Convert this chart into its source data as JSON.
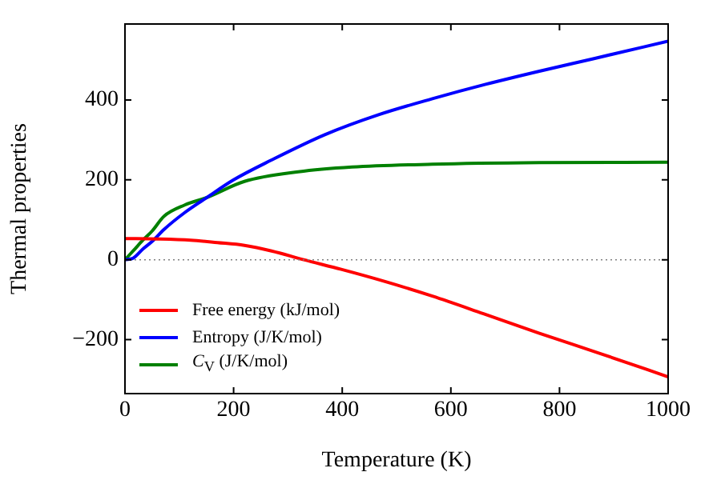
{
  "chart_data": {
    "type": "line",
    "xlabel": "Temperature (K)",
    "ylabel": "Thermal properties",
    "xlim": [
      0,
      1000
    ],
    "xticks": [
      0,
      200,
      400,
      600,
      800,
      1000
    ],
    "ylim": [
      -335,
      590
    ],
    "yticks": [
      -200,
      0,
      200,
      400
    ],
    "grid": false,
    "legend": "bottom left",
    "marker": "none",
    "line_style": "solid",
    "ref_lines": [
      {
        "axis": "y",
        "value": 0,
        "color": "#808080",
        "line_style": "dotted"
      }
    ],
    "series": [
      {
        "name": "Free energy (kJ/mol)",
        "color": "#ff0000",
        "x": [
          0,
          60,
          121,
          170,
          220,
          270,
          329,
          398,
          480,
          566,
          660,
          763,
          880,
          1000
        ],
        "values": [
          53,
          52,
          49,
          43,
          36,
          22,
          0,
          -24,
          -55,
          -91,
          -135,
          -184,
          -237,
          -293
        ]
      },
      {
        "name": "Entropy (J/K/mol)",
        "color": "#0000ff",
        "x": [
          0,
          15,
          33,
          50,
          72,
          110,
          151,
          200,
          269,
          368,
          467,
          566,
          664,
          763,
          862,
          1000
        ],
        "values": [
          0,
          4,
          27,
          46,
          76,
          118,
          156,
          200,
          249,
          313,
          363,
          403,
          439,
          472,
          503,
          547
        ]
      },
      {
        "name": "C$_{V}$ (J/K/mol)",
        "color": "#008000",
        "x": [
          0,
          15,
          33,
          50,
          72,
          110,
          151,
          220,
          319,
          418,
          566,
          763,
          1000
        ],
        "values": [
          0,
          22,
          49,
          72,
          109,
          137,
          156,
          196,
          220,
          232,
          239,
          243,
          244
        ]
      }
    ]
  }
}
